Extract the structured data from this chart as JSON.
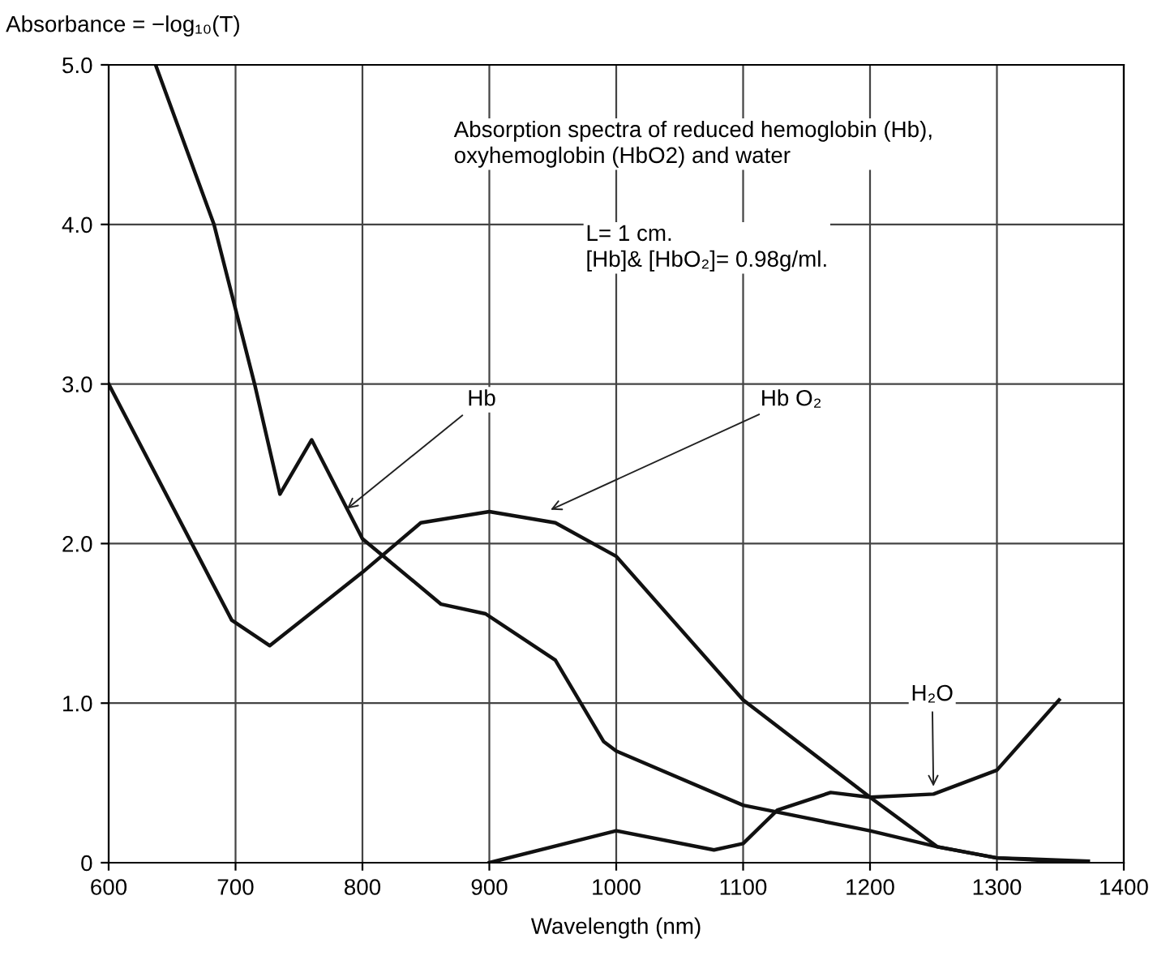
{
  "chart_data": {
    "type": "line",
    "ylabel": "Absorbance = −log₁₀(T)",
    "xlabel": "Wavelength (nm)",
    "xlim": [
      600,
      1400
    ],
    "xticks": [
      600,
      700,
      800,
      900,
      1000,
      1100,
      1200,
      1300,
      1400
    ],
    "ylim": [
      0,
      5
    ],
    "yticks": [
      0,
      {
        "value": 1,
        "label": "1.0"
      },
      {
        "value": 2,
        "label": "2.0"
      },
      {
        "value": 3,
        "label": "3.0"
      },
      {
        "value": 4,
        "label": "4.0"
      },
      {
        "value": 5,
        "label": "5.0"
      }
    ],
    "grid": true,
    "legend": false,
    "series": [
      {
        "color": "#111111",
        "x": [
          637,
          683,
          715,
          735,
          760,
          800,
          862,
          897,
          952,
          990,
          1000,
          1100,
          1200,
          1253,
          1300,
          1372
        ],
        "values": [
          5.0,
          4.0,
          3.0,
          2.31,
          2.65,
          2.03,
          1.62,
          1.56,
          1.27,
          0.76,
          0.7,
          0.36,
          0.2,
          0.1,
          0.03,
          0.01
        ]
      },
      {
        "color": "#111111",
        "x": [
          600,
          697,
          727,
          800,
          846,
          900,
          952,
          1000,
          1100,
          1200,
          1253,
          1300,
          1370
        ],
        "values": [
          3.0,
          1.52,
          1.36,
          1.82,
          2.13,
          2.2,
          2.13,
          1.92,
          1.02,
          0.41,
          0.1,
          0.03,
          0.0
        ]
      },
      {
        "color": "#111111",
        "x": [
          900,
          1000,
          1077,
          1100,
          1127,
          1169,
          1200,
          1250,
          1300,
          1349
        ],
        "values": [
          0.0,
          0.2,
          0.08,
          0.12,
          0.33,
          0.44,
          0.41,
          0.43,
          0.58,
          1.02
        ]
      }
    ],
    "annotations": [
      "Absorption spectra of reduced hemoglobin (Hb),\noxyhemoglobin (HbO2) and water",
      "L= 1 cm.\n[Hb]& [HbO₂]= 0.98g/ml.",
      {
        "text": "Hb",
        "x": 785,
        "y": 2.2
      },
      {
        "text": "Hb O₂",
        "x": 945,
        "y": 2.2
      },
      {
        "text": "H₂O",
        "x": 1250,
        "y": 0.45
      }
    ]
  }
}
